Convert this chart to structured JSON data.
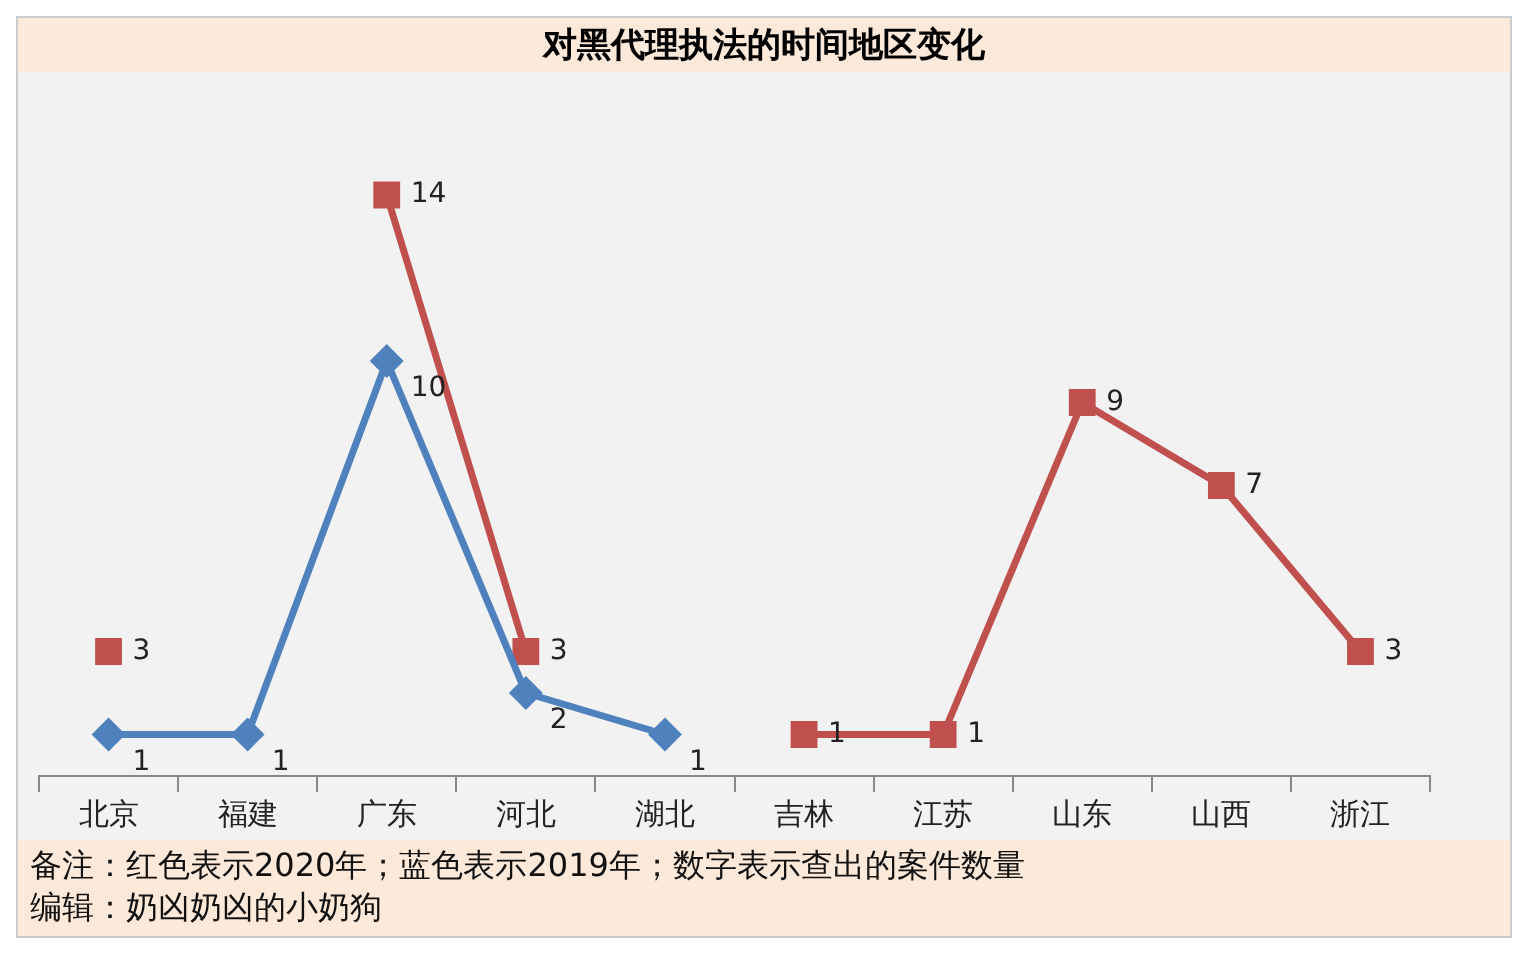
{
  "chart_data": {
    "type": "line",
    "title": "对黑代理执法的时间地区变化",
    "categories": [
      "北京",
      "福建",
      "广东",
      "河北",
      "湖北",
      "吉林",
      "江苏",
      "山东",
      "山西",
      "浙江"
    ],
    "series": [
      {
        "color": "#4f81bd",
        "marker": "diamond",
        "values": [
          1,
          1,
          10,
          2,
          1,
          null,
          null,
          null,
          null,
          null
        ]
      },
      {
        "color": "#c0504d",
        "marker": "square",
        "values": [
          3,
          null,
          14,
          3,
          null,
          1,
          1,
          9,
          7,
          3
        ]
      }
    ],
    "data_labels": true,
    "legend": false,
    "annotations": [
      "备注：红色表示2020年；蓝色表示2019年；数字表示查出的案件数量",
      "编辑：奶凶奶凶的小奶狗"
    ]
  }
}
